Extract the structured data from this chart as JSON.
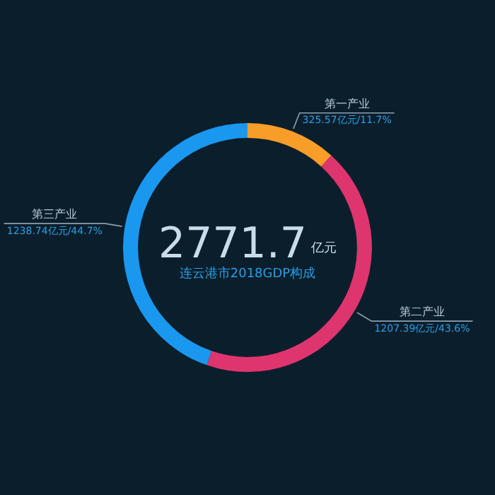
{
  "chart_data": {
    "type": "donut",
    "title": "连云港市2018GDP构成",
    "annotations": [
      "2771.7",
      "亿元"
    ],
    "categories": [
      "第一产业",
      "第二产业",
      "第三产业"
    ],
    "values": [
      325.57,
      1207.39,
      1238.74
    ],
    "value_labels": [
      "325.57亿元/11.7%",
      "1207.39亿元/43.6%",
      "1238.74亿元/44.7%"
    ],
    "colors": [
      "#f99d29",
      "#de356f",
      "#1a98f0"
    ],
    "legend": false
  }
}
